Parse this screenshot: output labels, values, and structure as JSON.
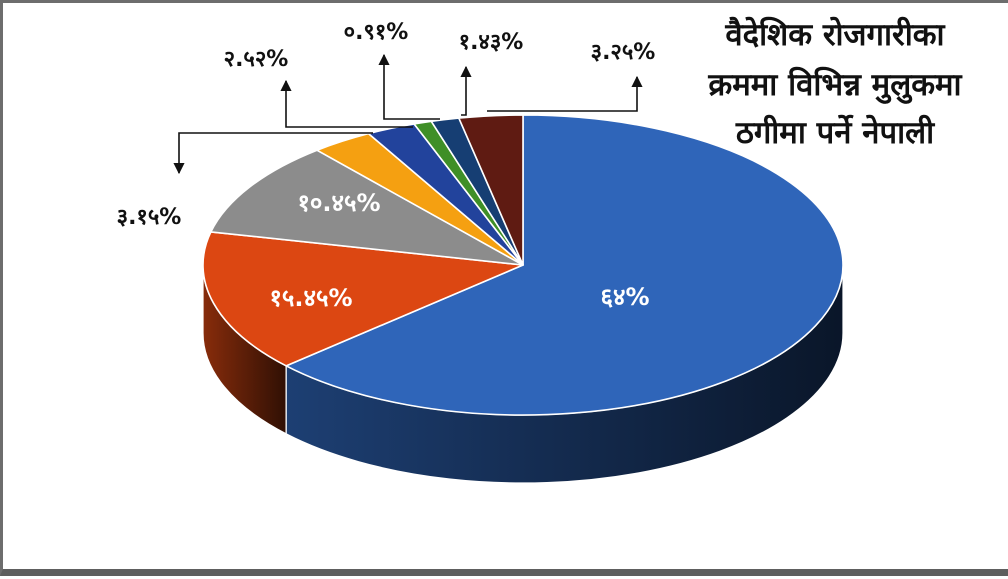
{
  "chart_data": {
    "type": "pie",
    "title_lines": [
      "वैदेशिक रोजगारीका",
      "क्रममा विभिन्न मुलुकमा",
      "ठगीमा पर्ने नेपाली"
    ],
    "slices": [
      {
        "label": "६४%",
        "value": 64,
        "color": "#2f65b9"
      },
      {
        "label": "१५.४५%",
        "value": 15.45,
        "color": "#dc4712"
      },
      {
        "label": "१०.४५%",
        "value": 10.45,
        "color": "#8c8c8c"
      },
      {
        "label": "३.१५%",
        "value": 3.15,
        "color": "#f5a011"
      },
      {
        "label": "२.५२%",
        "value": 2.52,
        "color": "#22439c"
      },
      {
        "label": "०.९१%",
        "value": 0.91,
        "color": "#3f8f27"
      },
      {
        "label": "१.४३%",
        "value": 1.43,
        "color": "#163e73"
      },
      {
        "label": "३.२५%",
        "value": 3.25,
        "color": "#5f1b12"
      }
    ]
  }
}
